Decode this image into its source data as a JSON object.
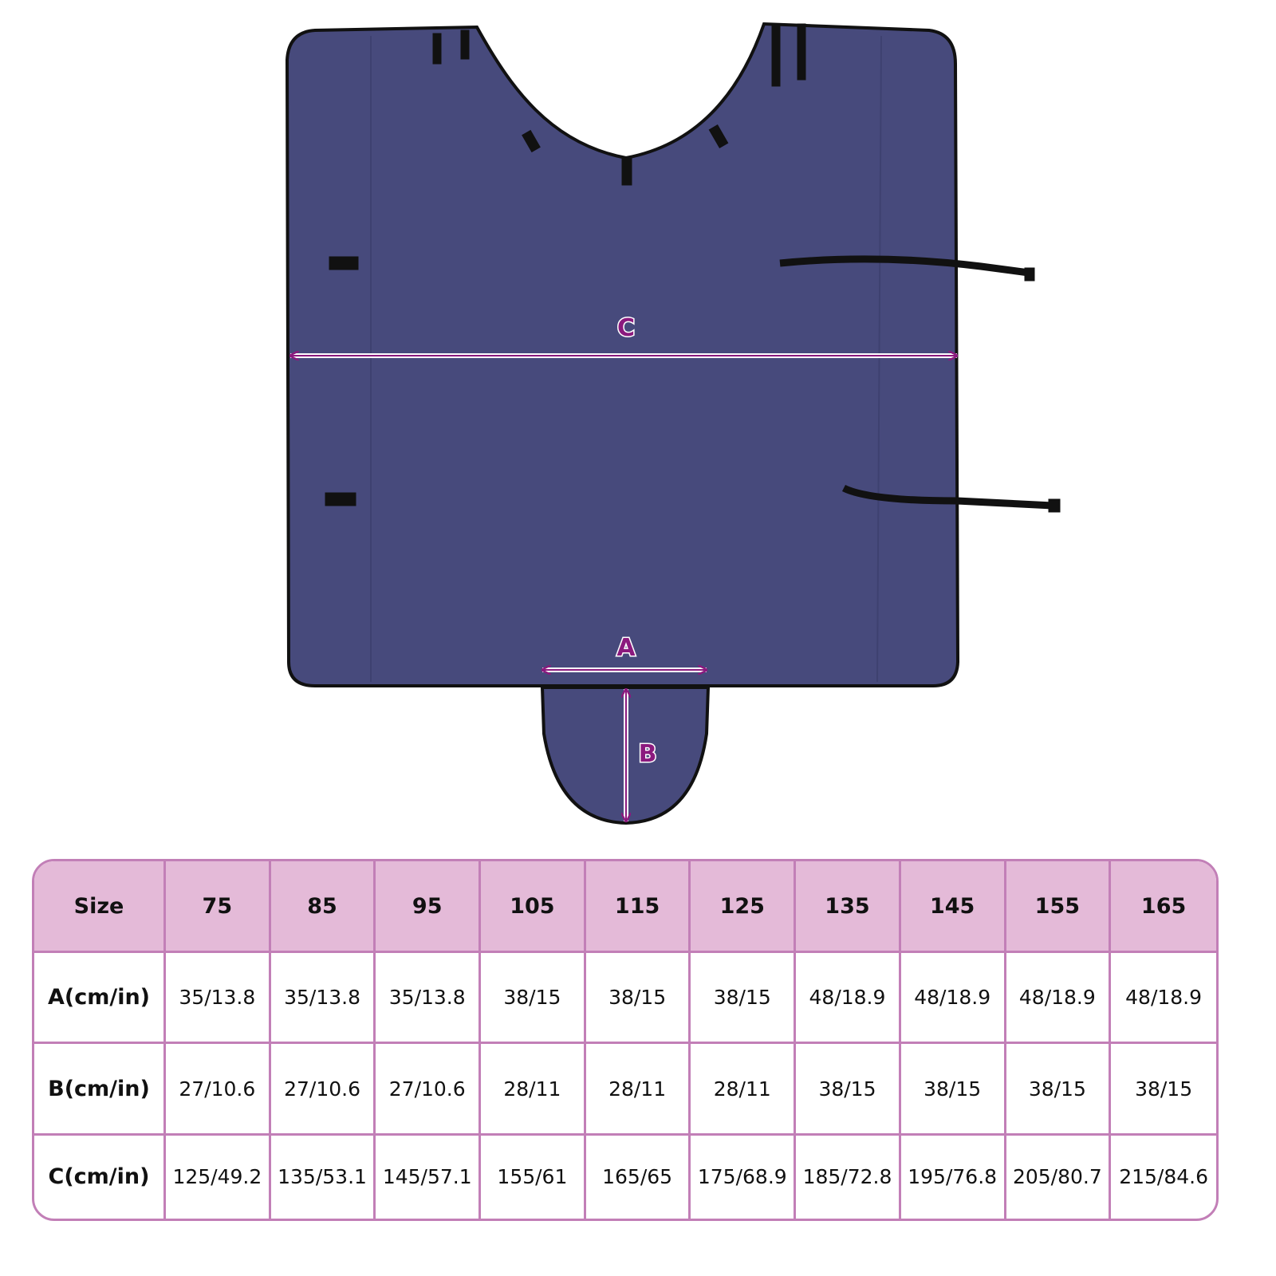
{
  "colors": {
    "fabric": "#474a7c",
    "header_bg": "#e4bad8",
    "border": "#c27fb7",
    "dimension_label": "#8b1a7e"
  },
  "diagram": {
    "labels": {
      "a": "A",
      "b": "B",
      "c": "C"
    }
  },
  "table": {
    "header": [
      "Size",
      "75",
      "85",
      "95",
      "105",
      "115",
      "125",
      "135",
      "145",
      "155",
      "165"
    ],
    "rows": [
      {
        "label": "A(cm/in)",
        "values": [
          "35/13.8",
          "35/13.8",
          "35/13.8",
          "38/15",
          "38/15",
          "38/15",
          "48/18.9",
          "48/18.9",
          "48/18.9",
          "48/18.9"
        ]
      },
      {
        "label": "B(cm/in)",
        "values": [
          "27/10.6",
          "27/10.6",
          "27/10.6",
          "28/11",
          "28/11",
          "28/11",
          "38/15",
          "38/15",
          "38/15",
          "38/15"
        ]
      },
      {
        "label": "C(cm/in)",
        "values": [
          "125/49.2",
          "135/53.1",
          "145/57.1",
          "155/61",
          "165/65",
          "175/68.9",
          "185/72.8",
          "195/76.8",
          "205/80.7",
          "215/84.6"
        ]
      }
    ]
  }
}
